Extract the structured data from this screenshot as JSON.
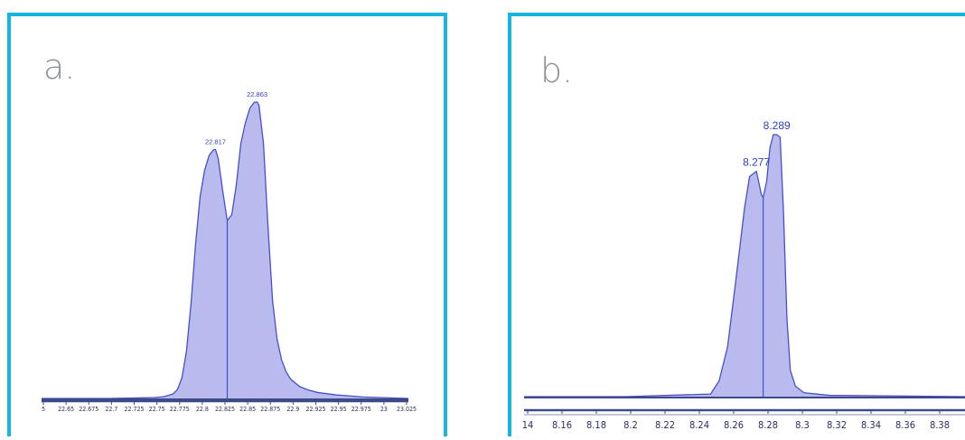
{
  "panels": [
    {
      "letter": "a.",
      "chart_data": {
        "type": "area",
        "title": "",
        "xlabel": "",
        "ylabel": "",
        "xlim": [
          22.625,
          23.03
        ],
        "ylim": [
          0,
          1.0
        ],
        "grid": false,
        "xticks": [
          "5",
          "22.65",
          "22.675",
          "22.7",
          "22.725",
          "22.75",
          "22.775",
          "22.8",
          "22.825",
          "22.85",
          "22.875",
          "22.9",
          "22.925",
          "22.95",
          "22.975",
          "23",
          "23.025"
        ],
        "split_x": 22.83,
        "series": [
          {
            "x": [
              22.625,
              22.7,
              22.75,
              22.76,
              22.77,
              22.775,
              22.78,
              22.785,
              22.79,
              22.795,
              22.8,
              22.805,
              22.81,
              22.815,
              22.817,
              22.82,
              22.825,
              22.83,
              22.835,
              22.84,
              22.845,
              22.85,
              22.855,
              22.86,
              22.863,
              22.865,
              22.87,
              22.875,
              22.88,
              22.885,
              22.89,
              22.895,
              22.9,
              22.91,
              22.92,
              22.93,
              22.95,
              22.98,
              23.03
            ],
            "y": [
              0.0,
              0.0,
              0.003,
              0.006,
              0.015,
              0.03,
              0.07,
              0.16,
              0.32,
              0.52,
              0.68,
              0.77,
              0.82,
              0.84,
              0.84,
              0.81,
              0.7,
              0.6,
              0.62,
              0.72,
              0.86,
              0.93,
              0.98,
              1.0,
              1.0,
              0.99,
              0.86,
              0.58,
              0.33,
              0.2,
              0.13,
              0.09,
              0.065,
              0.04,
              0.028,
              0.02,
              0.012,
              0.005,
              0.0
            ]
          }
        ],
        "peak_labels": [
          {
            "x": 22.817,
            "y": 0.84,
            "text": "22.817"
          },
          {
            "x": 22.863,
            "y": 1.0,
            "text": "22.863"
          }
        ]
      }
    },
    {
      "letter": "b.",
      "chart_data": {
        "type": "area",
        "title": "",
        "xlabel": "",
        "ylabel": "",
        "xlim": [
          8.14,
          8.4
        ],
        "ylim": [
          0,
          1.0
        ],
        "grid": false,
        "xticks": [
          "14",
          "8.16",
          "8.18",
          "8.2",
          "8.22",
          "8.24",
          "8.26",
          "8.28",
          "8.3",
          "8.32",
          "8.34",
          "8.36",
          "8.38"
        ],
        "split_x": 8.281,
        "series": [
          {
            "x": [
              8.14,
              8.2,
              8.25,
              8.255,
              8.26,
              8.265,
              8.27,
              8.273,
              8.277,
              8.28,
              8.281,
              8.283,
              8.285,
              8.287,
              8.289,
              8.291,
              8.293,
              8.295,
              8.297,
              8.3,
              8.305,
              8.32,
              8.4
            ],
            "y": [
              0.0,
              0.0,
              0.01,
              0.06,
              0.19,
              0.45,
              0.72,
              0.84,
              0.86,
              0.77,
              0.76,
              0.82,
              0.95,
              1.0,
              1.0,
              0.99,
              0.7,
              0.3,
              0.1,
              0.04,
              0.015,
              0.005,
              0.0
            ]
          }
        ],
        "peak_labels": [
          {
            "x": 8.277,
            "y": 0.86,
            "text": "8.277"
          },
          {
            "x": 8.289,
            "y": 1.0,
            "text": "8.289"
          }
        ]
      }
    }
  ],
  "colors": {
    "frame": "#17b6e0",
    "fill": "#b9bbef",
    "line": "#4650c8",
    "baseline": "#3d4a88",
    "peak_label": "#2e3fc4"
  }
}
